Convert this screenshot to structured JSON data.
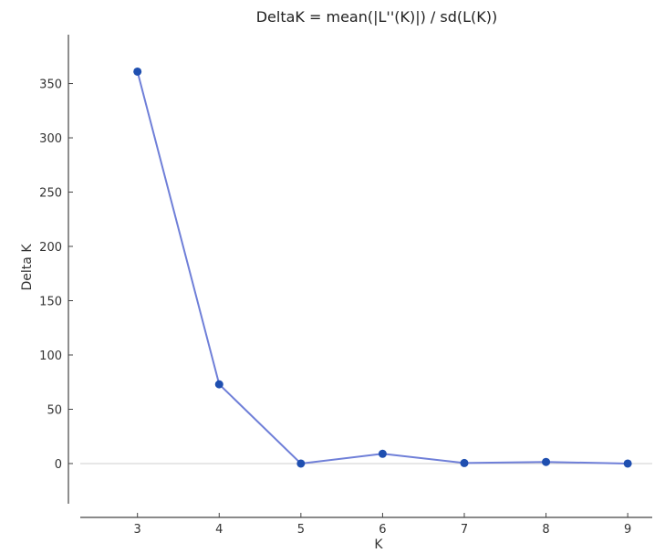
{
  "chart_data": {
    "type": "line",
    "title": "DeltaK = mean(|L''(K)|) / sd(L(K))",
    "xlabel": "K",
    "ylabel": "Delta K",
    "x": [
      3,
      4,
      5,
      6,
      7,
      8,
      9
    ],
    "series": [
      {
        "values": [
          361,
          73,
          0,
          9,
          0.5,
          1.5,
          0
        ],
        "color": "#6f7fd8",
        "marker_color": "#1f4fb0"
      }
    ],
    "xticks": [
      "3",
      "4",
      "5",
      "6",
      "7",
      "8",
      "9"
    ],
    "yticks": [
      "0",
      "50",
      "100",
      "150",
      "200",
      "250",
      "300",
      "350"
    ],
    "xlim": [
      2.3,
      9.3
    ],
    "ylim": [
      -37,
      395
    ],
    "reference_line": 0,
    "grid": false,
    "legend": "none"
  }
}
